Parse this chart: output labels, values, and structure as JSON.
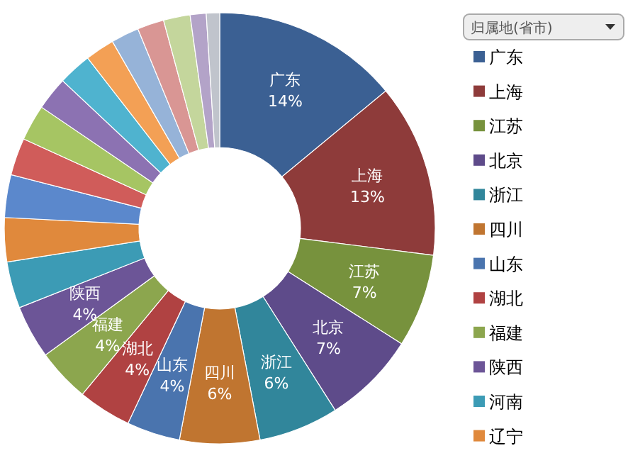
{
  "chart_data": {
    "type": "donut",
    "legend_title": "归属地(省市)",
    "legend": "right",
    "categories": [
      "广东",
      "上海",
      "江苏",
      "北京",
      "浙江",
      "四川",
      "山东",
      "湖北",
      "福建",
      "陕西",
      "河南",
      "辽宁",
      null,
      null,
      null,
      null,
      null,
      null,
      null,
      null,
      null,
      null,
      null
    ],
    "values": [
      14,
      13,
      7,
      7,
      6,
      6,
      4,
      4,
      4,
      4,
      3.5,
      3.3,
      3.2,
      2.8,
      2.7,
      2.5,
      2.5,
      2.2,
      2.1,
      2,
      2,
      1.2,
      1
    ],
    "value_labels": [
      "14%",
      "13%",
      "7%",
      "7%",
      "6%",
      "6%",
      "4%",
      "4%",
      "4%",
      "4%",
      null,
      null,
      null,
      null,
      null,
      null,
      null,
      null,
      null,
      null,
      null,
      null,
      null
    ],
    "colors": [
      "#3b6093",
      "#8e3b3a",
      "#77923d",
      "#5e4b8a",
      "#31869b",
      "#c07530",
      "#4a74ae",
      "#b04242",
      "#8ca64e",
      "#6c5597",
      "#3c9bb5",
      "#e0893c",
      "#5b88cc",
      "#d05c5a",
      "#a6c563",
      "#8c72b2",
      "#4fb3cf",
      "#f3a055",
      "#96b3d8",
      "#d99694",
      "#c4d69c",
      "#b3a3c8",
      "#c0c4cc"
    ]
  }
}
